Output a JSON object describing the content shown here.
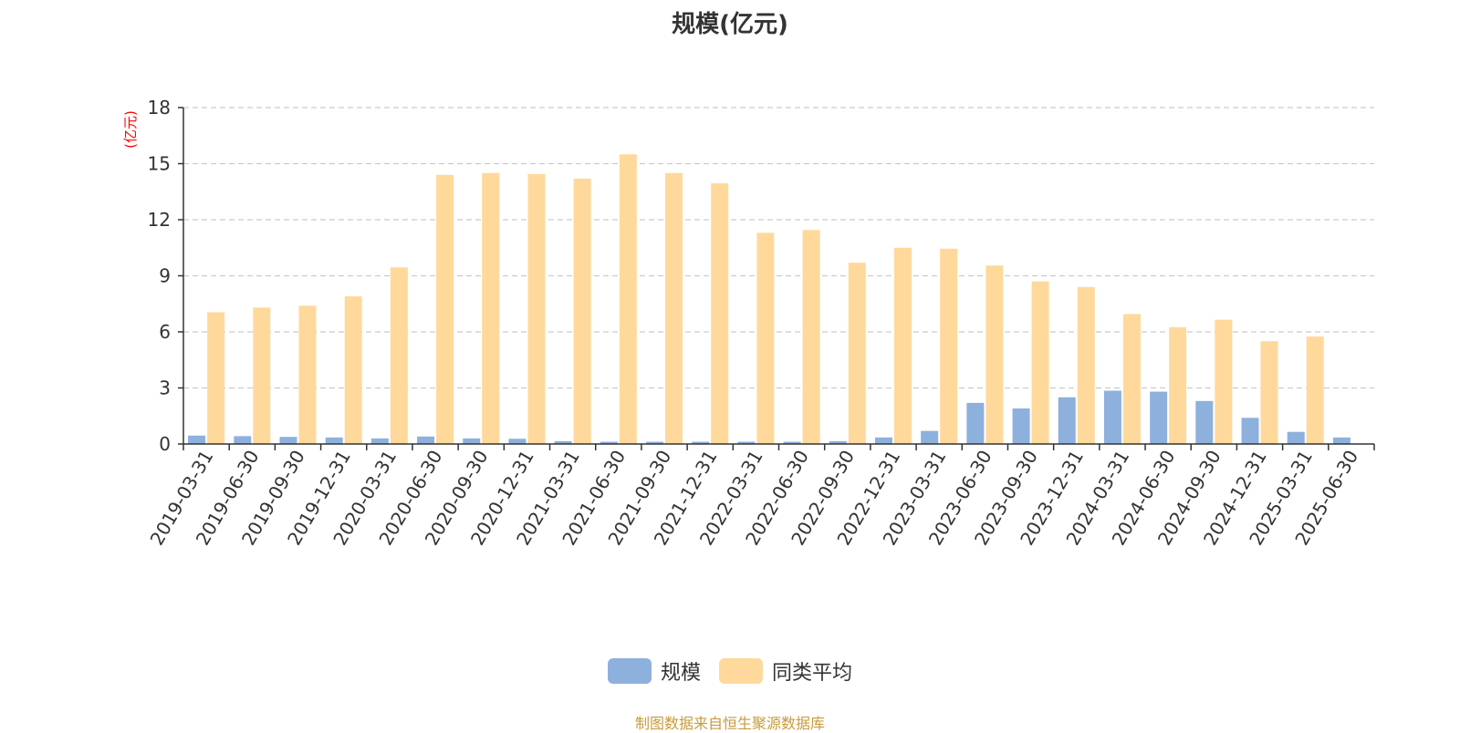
{
  "colors": {
    "series_scale": "#8eb0dd",
    "series_avg": "#ffd99b",
    "axis": "#333333",
    "grid": "#cccccc",
    "unit_label": "#ff0000",
    "source_note": "#c89b3c"
  },
  "source_note": "制图数据来自恒生聚源数据库",
  "chart_data": {
    "type": "bar",
    "title": "规模(亿元)",
    "ylabel": "(亿元)",
    "xlabel": "",
    "ylim": [
      0,
      18
    ],
    "yticks": [
      0,
      3,
      6,
      9,
      12,
      15,
      18
    ],
    "grid": true,
    "legend_position": "bottom",
    "categories": [
      "2019-03-31",
      "2019-06-30",
      "2019-09-30",
      "2019-12-31",
      "2020-03-31",
      "2020-06-30",
      "2020-09-30",
      "2020-12-31",
      "2021-03-31",
      "2021-06-30",
      "2021-09-30",
      "2021-12-31",
      "2022-03-31",
      "2022-06-30",
      "2022-09-30",
      "2022-12-31",
      "2023-03-31",
      "2023-06-30",
      "2023-09-30",
      "2023-12-31",
      "2024-03-31",
      "2024-06-30",
      "2024-09-30",
      "2024-12-31",
      "2025-03-31",
      "2025-06-30"
    ],
    "series": [
      {
        "name": "规模",
        "values": [
          0.45,
          0.42,
          0.38,
          0.35,
          0.3,
          0.4,
          0.3,
          0.28,
          0.15,
          0.12,
          0.12,
          0.12,
          0.12,
          0.12,
          0.15,
          0.35,
          0.7,
          2.2,
          1.9,
          2.5,
          2.85,
          2.8,
          2.3,
          1.4,
          0.65,
          0.35
        ]
      },
      {
        "name": "同类平均",
        "values": [
          7.05,
          7.3,
          7.4,
          7.9,
          9.45,
          14.4,
          14.5,
          14.45,
          14.2,
          15.5,
          14.5,
          13.95,
          11.3,
          11.45,
          9.7,
          10.5,
          10.45,
          9.55,
          8.7,
          8.4,
          6.95,
          6.25,
          6.65,
          5.5,
          5.75,
          null
        ]
      }
    ]
  }
}
